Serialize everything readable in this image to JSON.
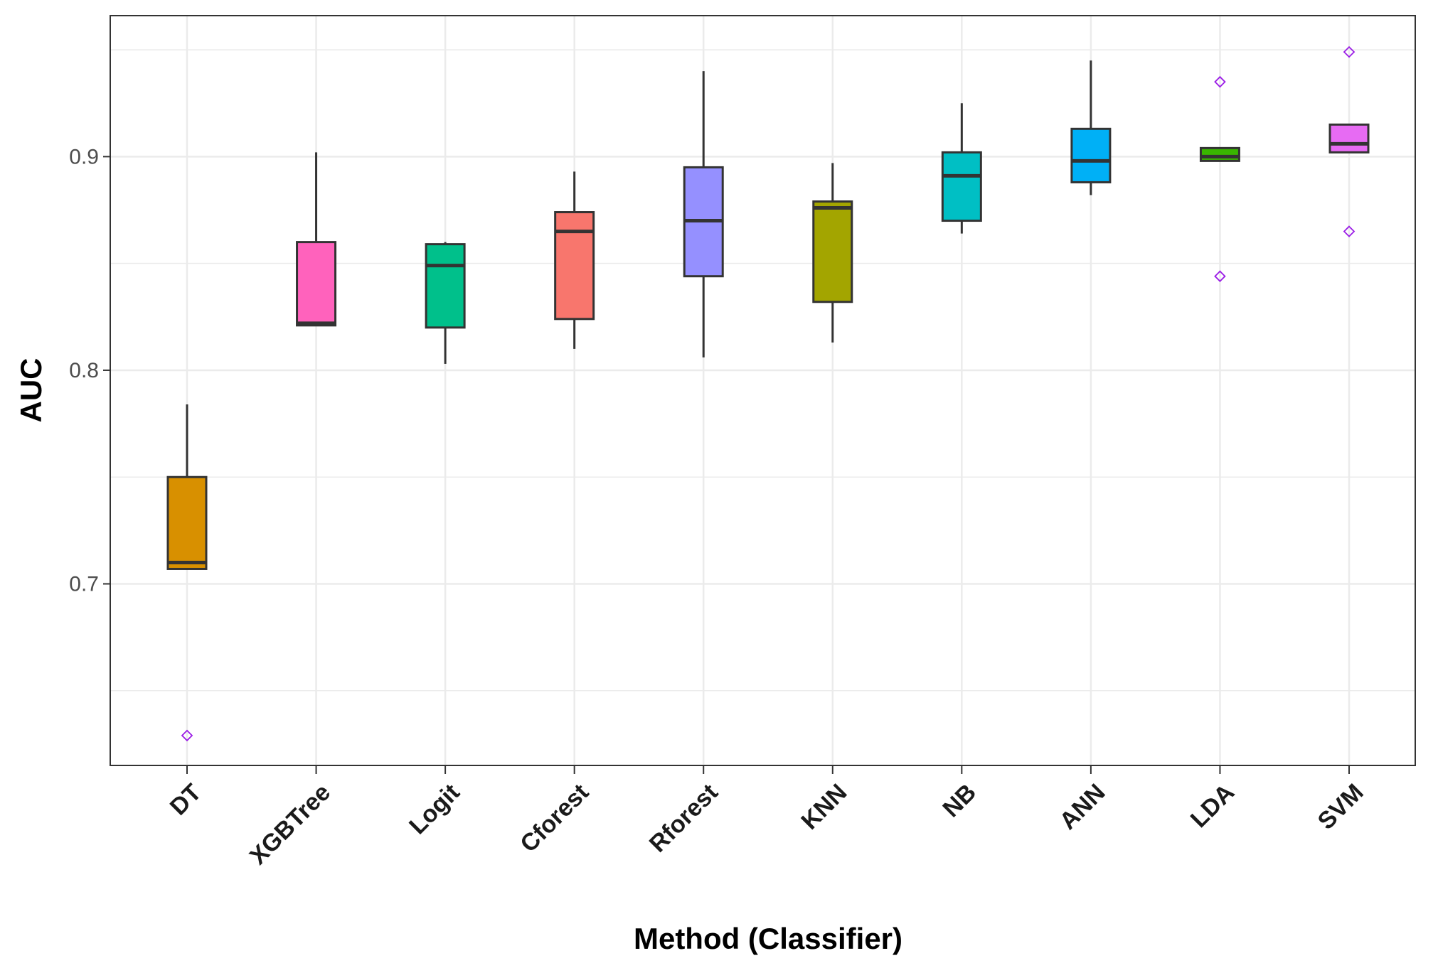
{
  "chart_data": {
    "type": "boxplot",
    "title": "",
    "xlabel": "Method (Classifier)",
    "ylabel": "AUC",
    "ylim": [
      0.615,
      0.966
    ],
    "yticks": [
      0.7,
      0.8,
      0.9
    ],
    "ytick_labels": [
      "0.7",
      "0.8",
      "0.9"
    ],
    "grid": true,
    "legend": "none",
    "outlier_color": "#9b1de6",
    "categories": [
      "DT",
      "XGBTree",
      "Logit",
      "Cforest",
      "Rforest",
      "KNN",
      "NB",
      "ANN",
      "LDA",
      "SVM"
    ],
    "boxes": [
      {
        "label": "DT",
        "color": "#d89000",
        "whisker_low": 0.707,
        "q1": 0.707,
        "median": 0.71,
        "q3": 0.75,
        "whisker_high": 0.784,
        "outliers": [
          0.629
        ]
      },
      {
        "label": "XGBTree",
        "color": "#ff62bc",
        "whisker_low": 0.821,
        "q1": 0.821,
        "median": 0.822,
        "q3": 0.86,
        "whisker_high": 0.902,
        "outliers": []
      },
      {
        "label": "Logit",
        "color": "#00c08b",
        "whisker_low": 0.803,
        "q1": 0.82,
        "median": 0.849,
        "q3": 0.859,
        "whisker_high": 0.86,
        "outliers": []
      },
      {
        "label": "Cforest",
        "color": "#f8766d",
        "whisker_low": 0.81,
        "q1": 0.824,
        "median": 0.865,
        "q3": 0.874,
        "whisker_high": 0.893,
        "outliers": []
      },
      {
        "label": "Rforest",
        "color": "#9590ff",
        "whisker_low": 0.806,
        "q1": 0.844,
        "median": 0.87,
        "q3": 0.895,
        "whisker_high": 0.94,
        "outliers": []
      },
      {
        "label": "KNN",
        "color": "#a3a500",
        "whisker_low": 0.813,
        "q1": 0.832,
        "median": 0.876,
        "q3": 0.879,
        "whisker_high": 0.897,
        "outliers": []
      },
      {
        "label": "NB",
        "color": "#00bfc4",
        "whisker_low": 0.864,
        "q1": 0.87,
        "median": 0.891,
        "q3": 0.902,
        "whisker_high": 0.925,
        "outliers": []
      },
      {
        "label": "ANN",
        "color": "#00b0f6",
        "whisker_low": 0.882,
        "q1": 0.888,
        "median": 0.898,
        "q3": 0.913,
        "whisker_high": 0.945,
        "outliers": []
      },
      {
        "label": "LDA",
        "color": "#39b600",
        "whisker_low": 0.898,
        "q1": 0.898,
        "median": 0.9,
        "q3": 0.904,
        "whisker_high": 0.904,
        "outliers": [
          0.935,
          0.844
        ]
      },
      {
        "label": "SVM",
        "color": "#e76bf3",
        "whisker_low": 0.902,
        "q1": 0.902,
        "median": 0.906,
        "q3": 0.915,
        "whisker_high": 0.915,
        "outliers": [
          0.949,
          0.865
        ]
      }
    ]
  }
}
